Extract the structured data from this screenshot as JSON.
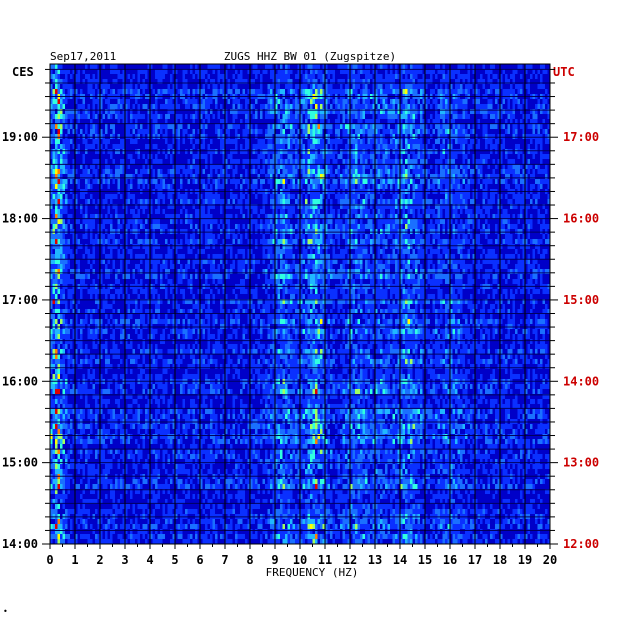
{
  "header": {
    "date": "Sep17,2011",
    "station": "ZUGS HHZ BW 01 (Zugspitze)",
    "left_timezone": "CES",
    "right_timezone": "UTC"
  },
  "footer_mark": "•",
  "colors": {
    "background": "#0000c8",
    "grid": "#000000",
    "utc_labels": "#cc0000",
    "text": "#000000"
  },
  "chart_data": {
    "type": "heatmap",
    "title": "ZUGS HHZ BW 01 (Zugspitze)",
    "xlabel": "FREQUENCY (HZ)",
    "ylabel": "",
    "xlim": [
      0,
      20
    ],
    "x_ticks": [
      "0",
      "1",
      "2",
      "3",
      "4",
      "5",
      "6",
      "7",
      "8",
      "9",
      "10",
      "11",
      "12",
      "13",
      "14",
      "15",
      "16",
      "17",
      "18",
      "19",
      "20"
    ],
    "y_ticks_left": [
      "19:00",
      "18:00",
      "17:00",
      "16:00",
      "15:00",
      "14:00"
    ],
    "y_ticks_left_hours": [
      19,
      18,
      17,
      16,
      15,
      14
    ],
    "y_ticks_right": [
      "17:00",
      "16:00",
      "15:00",
      "14:00",
      "13:00",
      "12:00"
    ],
    "y_ticks_right_hours": [
      17,
      16,
      15,
      14,
      13,
      12
    ],
    "ylim_ces_hours": [
      14,
      19.9
    ],
    "hot_bands_hz": [
      {
        "center": 0.3,
        "strength": 1.0
      },
      {
        "center": 10.6,
        "strength": 0.7
      },
      {
        "center": 9.3,
        "strength": 0.5
      },
      {
        "center": 12.2,
        "strength": 0.45
      },
      {
        "center": 14.3,
        "strength": 0.55
      },
      {
        "center": 16.0,
        "strength": 0.35
      },
      {
        "center": 13.2,
        "strength": 0.3
      }
    ]
  }
}
